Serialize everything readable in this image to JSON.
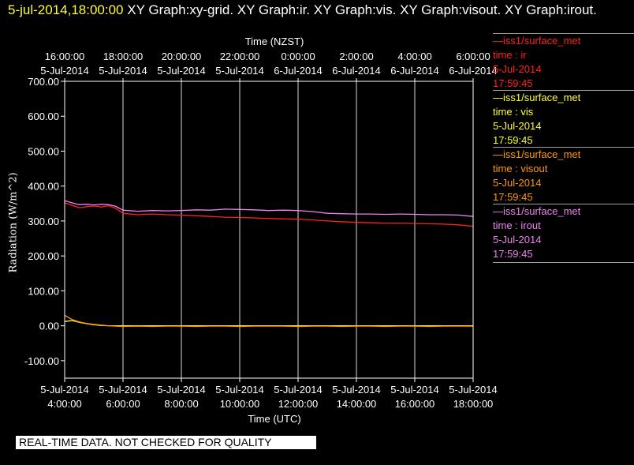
{
  "header": {
    "timestamp": "5-jul-2014,18:00:00",
    "graphs": "XY Graph:xy-grid.  XY Graph:ir.  XY Graph:vis.  XY Graph:visout.  XY Graph:irout."
  },
  "legend": [
    {
      "source": "—iss1/surface_met",
      "var": "time : ir",
      "date": "5-Jul-2014",
      "time": "17:59:45",
      "color": "#ff2020"
    },
    {
      "source": "—iss1/surface_met",
      "var": "time : vis",
      "date": "5-Jul-2014",
      "time": "17:59:45",
      "color": "#ffff33"
    },
    {
      "source": "—iss1/surface_met",
      "var": "time : visout",
      "date": "5-Jul-2014",
      "time": "17:59:45",
      "color": "#ff9900"
    },
    {
      "source": "—iss1/surface_met",
      "var": "time : irout",
      "date": "5-Jul-2014",
      "time": "17:59:45",
      "color": "#ee82ee"
    }
  ],
  "disclaimer": "REAL-TIME DATA. NOT CHECKED FOR QUALITY",
  "chart_data": {
    "type": "line",
    "xlabel": "Time (UTC)",
    "x2label": "Time (NZST)",
    "ylabel": "Radiation (W/m^2)",
    "ylim": [
      -150,
      700
    ],
    "xlim": [
      "2014-07-05T04:00:00",
      "2014-07-05T18:00:00"
    ],
    "grid": true,
    "x_ticks": [
      {
        "date": "5-Jul-2014",
        "time": "4:00:00"
      },
      {
        "date": "5-Jul-2014",
        "time": "6:00:00"
      },
      {
        "date": "5-Jul-2014",
        "time": "8:00:00"
      },
      {
        "date": "5-Jul-2014",
        "time": "10:00:00"
      },
      {
        "date": "5-Jul-2014",
        "time": "12:00:00"
      },
      {
        "date": "5-Jul-2014",
        "time": "14:00:00"
      },
      {
        "date": "5-Jul-2014",
        "time": "16:00:00"
      },
      {
        "date": "5-Jul-2014",
        "time": "18:00:00"
      }
    ],
    "x2_ticks": [
      {
        "time": "16:00:00",
        "date": "5-Jul-2014"
      },
      {
        "time": "18:00:00",
        "date": "5-Jul-2014"
      },
      {
        "time": "20:00:00",
        "date": "5-Jul-2014"
      },
      {
        "time": "22:00:00",
        "date": "5-Jul-2014"
      },
      {
        "time": "0:00:00",
        "date": "6-Jul-2014"
      },
      {
        "time": "2:00:00",
        "date": "6-Jul-2014"
      },
      {
        "time": "4:00:00",
        "date": "6-Jul-2014"
      },
      {
        "time": "6:00:00",
        "date": "6-Jul-2014"
      }
    ],
    "y_ticks": [
      "700.00",
      "600.00",
      "500.00",
      "400.00",
      "300.00",
      "200.00",
      "100.00",
      "0.00",
      "-100.00"
    ],
    "y_tick_values": [
      700,
      600,
      500,
      400,
      300,
      200,
      100,
      0,
      -100
    ],
    "x_hours": [
      4,
      4.25,
      4.5,
      4.75,
      5,
      5.25,
      5.5,
      5.75,
      6,
      6.5,
      7,
      7.5,
      8,
      8.5,
      9,
      9.5,
      10,
      10.5,
      11,
      11.5,
      12,
      12.5,
      13,
      13.5,
      14,
      14.5,
      15,
      15.5,
      16,
      16.5,
      17,
      17.5,
      18
    ],
    "series": [
      {
        "name": "ir",
        "color": "#ff2020",
        "values": [
          352,
          345,
          338,
          341,
          343,
          340,
          344,
          336,
          322,
          318,
          320,
          318,
          317,
          315,
          313,
          311,
          310,
          309,
          307,
          306,
          305,
          303,
          300,
          298,
          296,
          295,
          294,
          294,
          293,
          292,
          291,
          289,
          285
        ]
      },
      {
        "name": "vis",
        "color": "#ffff33",
        "values": [
          12,
          15,
          10,
          6,
          3,
          1,
          0,
          0,
          0,
          0,
          0,
          0,
          0,
          0,
          0,
          0,
          0,
          0,
          0,
          0,
          0,
          0,
          0,
          0,
          0,
          0,
          0,
          0,
          0,
          0,
          0,
          0,
          0
        ]
      },
      {
        "name": "visout",
        "color": "#ff9900",
        "values": [
          30,
          18,
          11,
          7,
          4,
          2,
          0,
          -1,
          -2,
          -1,
          -2,
          -1,
          -1,
          -2,
          -1,
          -1,
          -2,
          -1,
          -1,
          -1,
          -2,
          -1,
          -1,
          -2,
          -1,
          -1,
          -2,
          -1,
          -1,
          -2,
          -1,
          -1,
          -1
        ]
      },
      {
        "name": "irout",
        "color": "#ee82ee",
        "values": [
          358,
          352,
          347,
          348,
          346,
          348,
          347,
          342,
          331,
          328,
          330,
          329,
          330,
          332,
          331,
          334,
          333,
          332,
          330,
          331,
          330,
          327,
          322,
          321,
          320,
          320,
          319,
          320,
          319,
          318,
          318,
          317,
          313
        ]
      }
    ]
  }
}
